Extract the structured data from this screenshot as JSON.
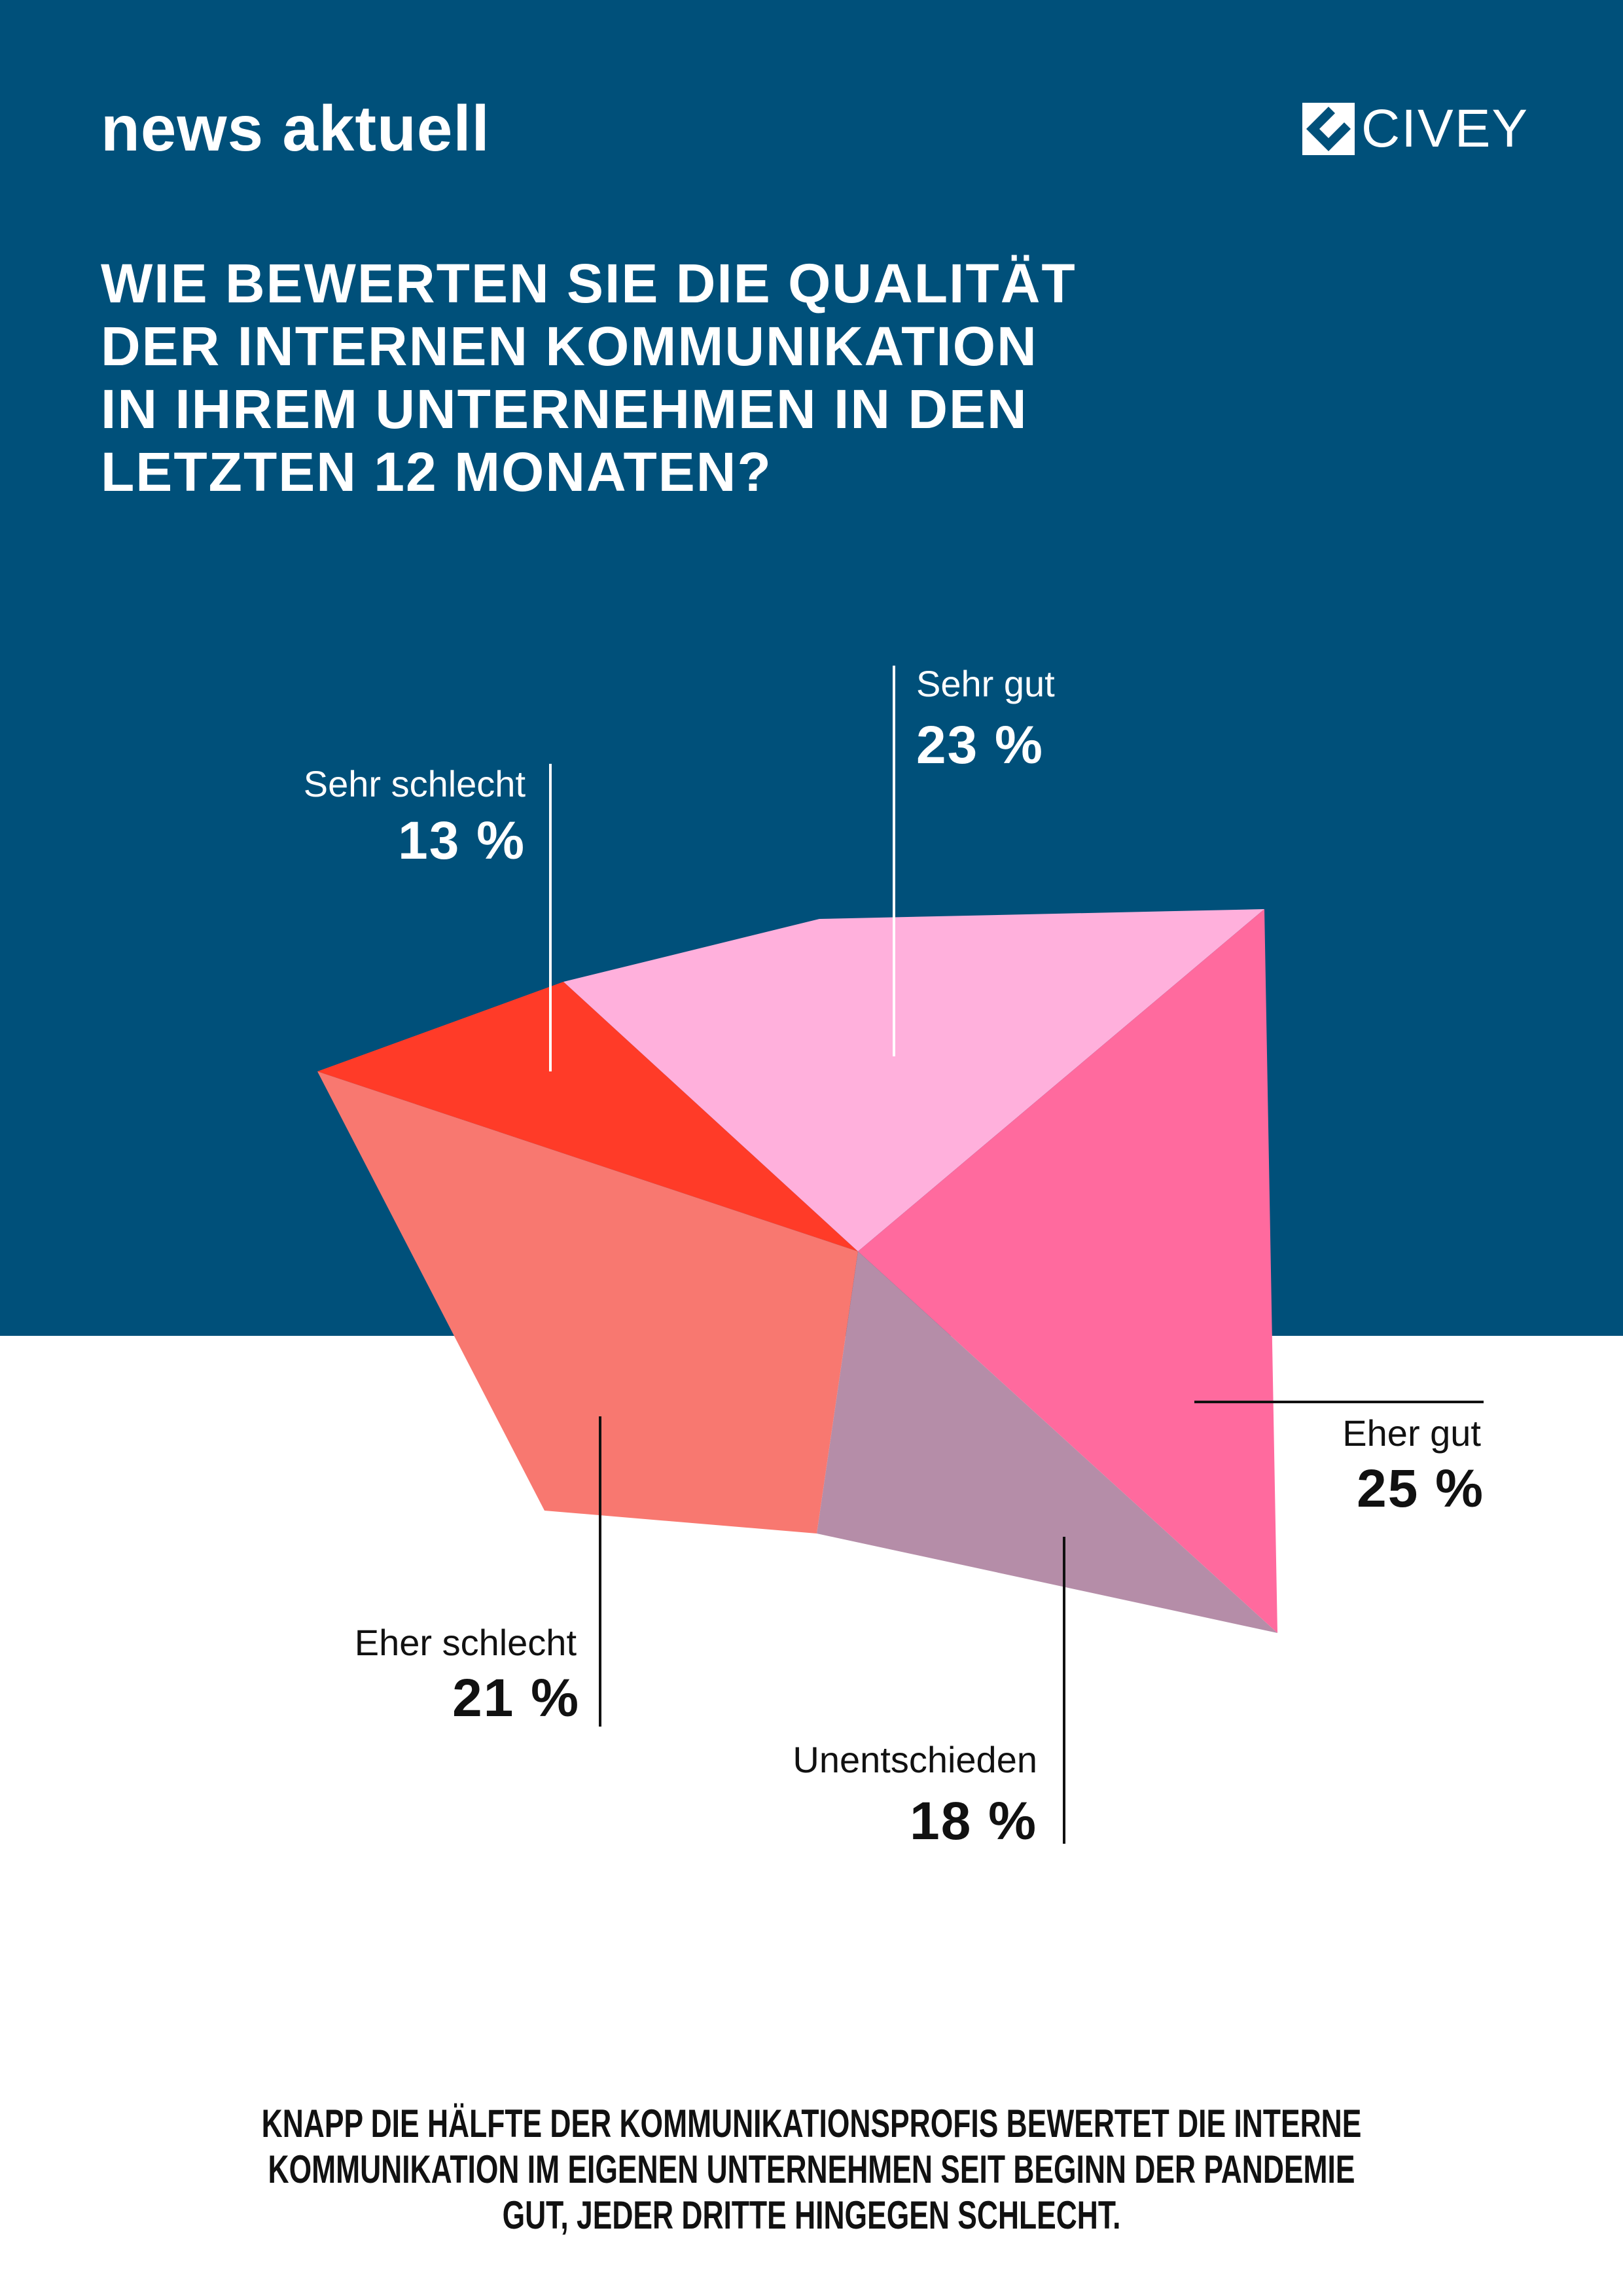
{
  "header": {
    "brand": "news aktuell",
    "partner_logo": "CIVEY"
  },
  "title_lines": [
    "WIE BEWERTEN SIE DIE QUALITÄT",
    "DER INTERNEN KOMMUNIKATION",
    "IN IHREM UNTERNEHMEN IN DEN",
    "LETZTEN 12 MONATEN?"
  ],
  "colors": {
    "background_top": "#00507A",
    "sehr_schlecht": "#FF3B28",
    "sehr_gut": "#FFB0DC",
    "eher_gut": "#FF6A9E",
    "unentschieden": "#B58DA8",
    "eher_schlecht": "#F87870"
  },
  "chart_data": {
    "type": "pie",
    "title": "Wie bewerten Sie die Qualität der internen Kommunikation in Ihrem Unternehmen in den letzten 12 Monaten?",
    "categories": [
      "Sehr schlecht",
      "Sehr gut",
      "Eher gut",
      "Unentschieden",
      "Eher schlecht"
    ],
    "values": [
      13,
      23,
      25,
      18,
      21
    ],
    "value_labels": [
      "13 %",
      "23 %",
      "25 %",
      "18 %",
      "21 %"
    ],
    "unit": "%"
  },
  "footer_lines": [
    "KNAPP DIE HÄLFTE DER KOMMUNIKATIONSPROFIS BEWERTET DIE INTERNE",
    "KOMMUNIKATION IM EIGENEN UNTERNEHMEN SEIT BEGINN DER PANDEMIE",
    "GUT, JEDER DRITTE HINGEGEN SCHLECHT."
  ]
}
